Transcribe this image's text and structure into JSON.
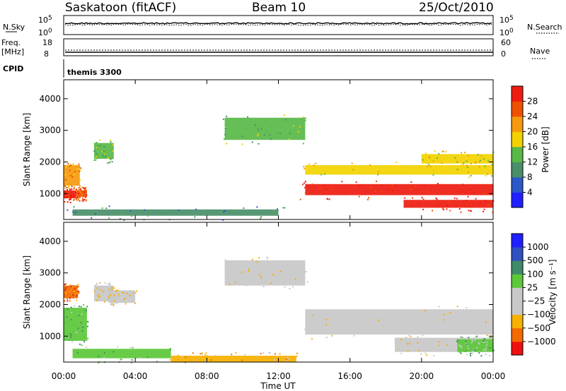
{
  "header": {
    "station": "Saskatoon (fitACF)",
    "beam": "Beam 10",
    "date": "25/Oct/2010"
  },
  "strips": {
    "nsky_label": "N.Sky",
    "nsky_top": "10^5",
    "nsky_bottom": "10^0",
    "nsearch_label": "N.Search",
    "nsearch_top": "10^5",
    "nsearch_bottom": "10^0",
    "freq_label": "Freq.",
    "freq_unit": "[MHz]",
    "freq_top": "18",
    "freq_bottom": "8",
    "nave_label": "Nave",
    "nave_top": "60",
    "nave_bottom": "0",
    "cpid_label": "CPID",
    "cpid_value": "themis 3300"
  },
  "colors": {
    "power": [
      "#1f1fff",
      "#2a58c8",
      "#4a8f6a",
      "#58b848",
      "#f2d200",
      "#f59a10",
      "#ef5000",
      "#ee1c10"
    ],
    "velocity": [
      "#ee1010",
      "#f26a00",
      "#f6b000",
      "#c8c8c8",
      "#c8c8c8",
      "#5cc83a",
      "#3f8a68",
      "#3050c0",
      "#1f1fff"
    ]
  },
  "chart_data": [
    {
      "type": "heatmap",
      "name": "power",
      "ylabel": "Slant Range [km]",
      "yticks": [
        "1000",
        "2000",
        "3000",
        "4000"
      ],
      "ylim": [
        180,
        4600
      ],
      "xticks": [
        "00:00",
        "04:00",
        "08:00",
        "12:00",
        "16:00",
        "20:00",
        "00:00"
      ],
      "xlim": [
        0,
        24
      ],
      "colorbar_label": "Power [dB]",
      "colorbar_ticks": [
        "4",
        "8",
        "12",
        "16",
        "20",
        "24",
        "28"
      ],
      "bands": [
        {
          "t0": 0.0,
          "t1": 0.7,
          "r0": 850,
          "r1": 1100,
          "level": 7
        },
        {
          "t0": 0.7,
          "t1": 1.3,
          "r0": 900,
          "r1": 1100,
          "level": 6
        },
        {
          "t0": 0.0,
          "t1": 0.9,
          "r0": 1250,
          "r1": 1900,
          "level": 5
        },
        {
          "t0": 1.7,
          "t1": 2.8,
          "r0": 2100,
          "r1": 2600,
          "level": 3
        },
        {
          "t0": 0.5,
          "t1": 12.0,
          "r0": 300,
          "r1": 500,
          "level": 2
        },
        {
          "t0": 9.0,
          "t1": 13.5,
          "r0": 2700,
          "r1": 3400,
          "level": 3
        },
        {
          "t0": 13.5,
          "t1": 24.0,
          "r0": 1600,
          "r1": 1900,
          "level": 4
        },
        {
          "t0": 13.5,
          "t1": 24.0,
          "r0": 950,
          "r1": 1300,
          "level": 7
        },
        {
          "t0": 19.0,
          "t1": 24.0,
          "r0": 550,
          "r1": 800,
          "level": 7
        },
        {
          "t0": 20.0,
          "t1": 24.0,
          "r0": 1950,
          "r1": 2250,
          "level": 4
        }
      ]
    },
    {
      "type": "heatmap",
      "name": "velocity",
      "ylabel": "Slant Range [km]",
      "yticks": [
        "1000",
        "2000",
        "3000",
        "4000"
      ],
      "ylim": [
        180,
        4600
      ],
      "xticks": [
        "00:00",
        "04:00",
        "08:00",
        "12:00",
        "16:00",
        "20:00",
        "00:00"
      ],
      "xlim": [
        0,
        24
      ],
      "xlabel": "Time UT",
      "colorbar_label": "Velocity [m s⁻¹]",
      "colorbar_ticks": [
        "1000",
        "500",
        "100",
        "25",
        "−25",
        "−100",
        "−500",
        "−1000"
      ],
      "bands": [
        {
          "t0": 0.0,
          "t1": 1.3,
          "r0": 850,
          "r1": 1900,
          "level": 5
        },
        {
          "t0": 0.0,
          "t1": 0.8,
          "r0": 2200,
          "r1": 2600,
          "level": 1
        },
        {
          "t0": 1.7,
          "t1": 2.8,
          "r0": 2100,
          "r1": 2600,
          "level": 3
        },
        {
          "t0": 2.5,
          "t1": 4.0,
          "r0": 2050,
          "r1": 2450,
          "level": 3
        },
        {
          "t0": 0.5,
          "t1": 6.0,
          "r0": 300,
          "r1": 600,
          "level": 5
        },
        {
          "t0": 6.0,
          "t1": 13.0,
          "r0": 180,
          "r1": 380,
          "level": 2
        },
        {
          "t0": 9.0,
          "t1": 13.5,
          "r0": 2600,
          "r1": 3400,
          "level": 3
        },
        {
          "t0": 13.5,
          "t1": 24.0,
          "r0": 1050,
          "r1": 1850,
          "level": 3
        },
        {
          "t0": 18.5,
          "t1": 24.0,
          "r0": 500,
          "r1": 950,
          "level": 3
        },
        {
          "t0": 22.0,
          "t1": 24.0,
          "r0": 500,
          "r1": 900,
          "level": 5
        }
      ]
    }
  ]
}
